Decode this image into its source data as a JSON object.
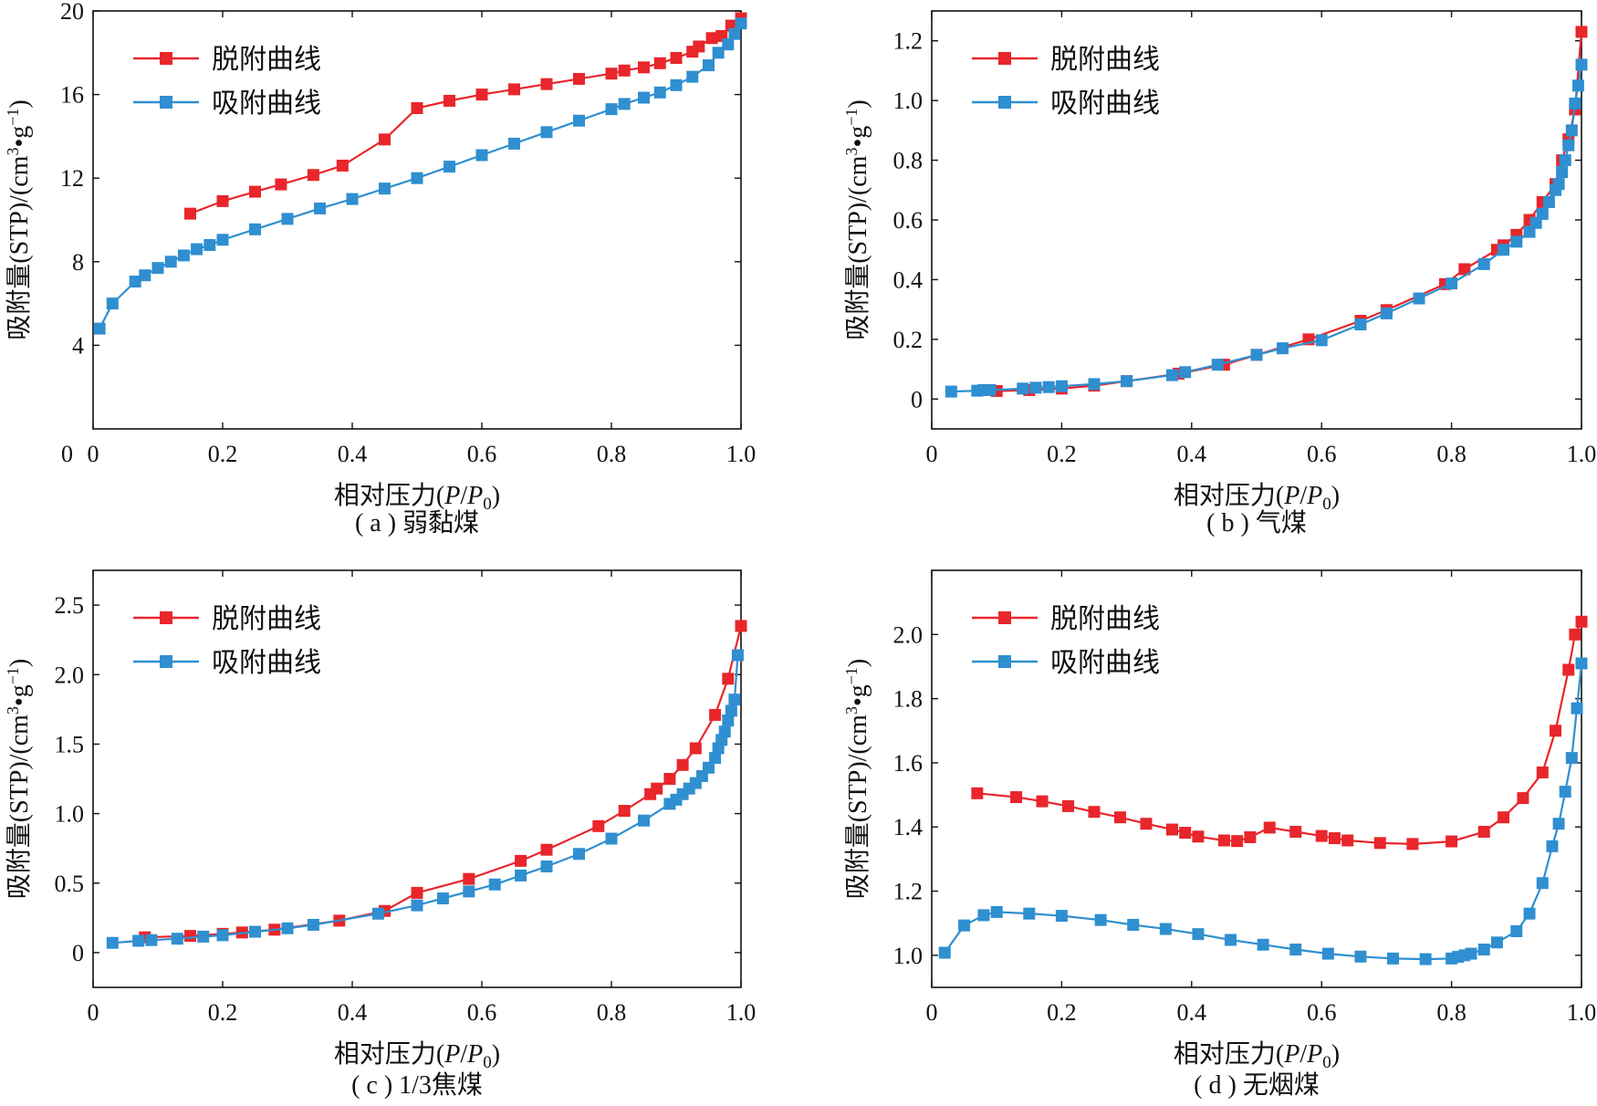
{
  "colors": {
    "desorption": "#e8262b",
    "adsorption": "#2f8fd0",
    "axis": "#111111"
  },
  "chart_data": [
    {
      "type": "line",
      "caption": "( a ) 弱黏煤",
      "xlabel_prefix": "相对压力(",
      "xlabel_var1": "P",
      "xlabel_sep": "/",
      "xlabel_var2": "P",
      "xlabel_sub": "0",
      "xlabel_suffix": ")",
      "ylabel_main": "吸附量(STP)/(cm",
      "ylabel_sup1": "3",
      "ylabel_mid": "•g",
      "ylabel_sup2": "−1",
      "ylabel_end": ")",
      "xlim": [
        0,
        1.0
      ],
      "ylim": [
        0,
        20
      ],
      "xticks": [
        0,
        0.2,
        0.4,
        0.6,
        0.8,
        1.0
      ],
      "xtick_labels": [
        "0",
        "0.2",
        "0.4",
        "0.6",
        "0.8",
        "1.0"
      ],
      "yticks": [
        4,
        8,
        12,
        16,
        20
      ],
      "ytick_labels": [
        "4",
        "8",
        "12",
        "16",
        "20"
      ],
      "origin_label": "0",
      "legend_position": "top-left",
      "series": [
        {
          "name": "脱附曲线",
          "color": "#e8262b",
          "x": [
            0.15,
            0.2,
            0.25,
            0.29,
            0.34,
            0.385,
            0.45,
            0.5,
            0.55,
            0.6,
            0.65,
            0.7,
            0.75,
            0.8,
            0.82,
            0.85,
            0.875,
            0.9,
            0.925,
            0.935,
            0.955,
            0.97,
            0.985,
            1.0
          ],
          "y": [
            10.3,
            10.9,
            11.35,
            11.7,
            12.15,
            12.6,
            13.85,
            15.35,
            15.7,
            16.0,
            16.25,
            16.5,
            16.75,
            17.0,
            17.15,
            17.3,
            17.5,
            17.75,
            18.05,
            18.3,
            18.7,
            18.8,
            19.3,
            19.65
          ]
        },
        {
          "name": "吸附曲线",
          "color": "#2f8fd0",
          "x": [
            0.01,
            0.03,
            0.065,
            0.08,
            0.1,
            0.12,
            0.14,
            0.16,
            0.18,
            0.2,
            0.25,
            0.3,
            0.35,
            0.4,
            0.45,
            0.5,
            0.55,
            0.6,
            0.65,
            0.7,
            0.75,
            0.8,
            0.82,
            0.85,
            0.875,
            0.9,
            0.925,
            0.95,
            0.965,
            0.98,
            0.99,
            1.0
          ],
          "y": [
            4.8,
            6.0,
            7.05,
            7.35,
            7.7,
            8.0,
            8.3,
            8.6,
            8.8,
            9.05,
            9.55,
            10.05,
            10.55,
            11.0,
            11.5,
            12.0,
            12.55,
            13.1,
            13.65,
            14.2,
            14.75,
            15.3,
            15.55,
            15.85,
            16.1,
            16.45,
            16.85,
            17.4,
            18.0,
            18.4,
            18.9,
            19.4
          ]
        }
      ]
    },
    {
      "type": "line",
      "caption": "( b ) 气煤",
      "xlabel_prefix": "相对压力(",
      "xlabel_var1": "P",
      "xlabel_sep": "/",
      "xlabel_var2": "P",
      "xlabel_sub": "0",
      "xlabel_suffix": ")",
      "ylabel_main": "吸附量(STP)/(cm",
      "ylabel_sup1": "3",
      "ylabel_mid": "•g",
      "ylabel_sup2": "−1",
      "ylabel_end": ")",
      "xlim": [
        0,
        1.0
      ],
      "ylim": [
        -0.1,
        1.3
      ],
      "xticks": [
        0,
        0.2,
        0.4,
        0.6,
        0.8,
        1.0
      ],
      "xtick_labels": [
        "0",
        "0.2",
        "0.4",
        "0.6",
        "0.8",
        "1.0"
      ],
      "yticks": [
        0,
        0.2,
        0.4,
        0.6,
        0.8,
        1.0,
        1.2
      ],
      "ytick_labels": [
        "0",
        "0.2",
        "0.4",
        "0.6",
        "0.8",
        "1.0",
        "1.2"
      ],
      "origin_label": "",
      "legend_position": "top-left",
      "series": [
        {
          "name": "脱附曲线",
          "color": "#e8262b",
          "x": [
            0.1,
            0.15,
            0.2,
            0.25,
            0.3,
            0.38,
            0.45,
            0.5,
            0.58,
            0.66,
            0.7,
            0.79,
            0.82,
            0.87,
            0.88,
            0.9,
            0.92,
            0.94,
            0.96,
            0.97,
            0.98,
            0.99,
            1.0
          ],
          "y": [
            0.027,
            0.03,
            0.035,
            0.045,
            0.06,
            0.085,
            0.115,
            0.148,
            0.2,
            0.262,
            0.298,
            0.385,
            0.435,
            0.5,
            0.515,
            0.55,
            0.6,
            0.66,
            0.72,
            0.8,
            0.87,
            0.97,
            1.23
          ]
        },
        {
          "name": "吸附曲线",
          "color": "#2f8fd0",
          "x": [
            0.03,
            0.07,
            0.08,
            0.09,
            0.14,
            0.16,
            0.18,
            0.2,
            0.25,
            0.3,
            0.37,
            0.39,
            0.44,
            0.5,
            0.54,
            0.6,
            0.66,
            0.7,
            0.75,
            0.8,
            0.85,
            0.88,
            0.9,
            0.92,
            0.93,
            0.94,
            0.95,
            0.96,
            0.965,
            0.97,
            0.975,
            0.98,
            0.985,
            0.99,
            0.995,
            1.0
          ],
          "y": [
            0.025,
            0.028,
            0.03,
            0.03,
            0.035,
            0.038,
            0.04,
            0.043,
            0.05,
            0.06,
            0.08,
            0.09,
            0.115,
            0.148,
            0.17,
            0.197,
            0.25,
            0.287,
            0.337,
            0.387,
            0.452,
            0.5,
            0.527,
            0.56,
            0.59,
            0.62,
            0.66,
            0.7,
            0.72,
            0.76,
            0.8,
            0.85,
            0.9,
            0.99,
            1.05,
            1.12
          ]
        }
      ]
    },
    {
      "type": "line",
      "caption": "( c ) 1/3焦煤",
      "xlabel_prefix": "相对压力(",
      "xlabel_var1": "P",
      "xlabel_sep": "/",
      "xlabel_var2": "P",
      "xlabel_sub": "0",
      "xlabel_suffix": ")",
      "ylabel_main": "吸附量(STP)/(cm",
      "ylabel_sup1": "3",
      "ylabel_mid": "•g",
      "ylabel_sup2": "−1",
      "ylabel_end": ")",
      "xlim": [
        0,
        1.0
      ],
      "ylim": [
        -0.25,
        2.75
      ],
      "xticks": [
        0,
        0.2,
        0.4,
        0.6,
        0.8,
        1.0
      ],
      "xtick_labels": [
        "0",
        "0.2",
        "0.4",
        "0.6",
        "0.8",
        "1.0"
      ],
      "yticks": [
        0,
        0.5,
        1.0,
        1.5,
        2.0,
        2.5
      ],
      "ytick_labels": [
        "0",
        "0.5",
        "1.0",
        "1.5",
        "2.0",
        "2.5"
      ],
      "origin_label": "",
      "legend_position": "top-left",
      "series": [
        {
          "name": "脱附曲线",
          "color": "#e8262b",
          "x": [
            0.08,
            0.15,
            0.2,
            0.23,
            0.28,
            0.38,
            0.45,
            0.5,
            0.58,
            0.66,
            0.7,
            0.78,
            0.82,
            0.86,
            0.87,
            0.89,
            0.91,
            0.93,
            0.96,
            0.98,
            1.0
          ],
          "y": [
            0.11,
            0.12,
            0.135,
            0.145,
            0.165,
            0.23,
            0.3,
            0.43,
            0.53,
            0.66,
            0.74,
            0.91,
            1.02,
            1.14,
            1.18,
            1.25,
            1.35,
            1.47,
            1.71,
            1.97,
            2.35
          ]
        },
        {
          "name": "吸附曲线",
          "color": "#2f8fd0",
          "x": [
            0.03,
            0.07,
            0.09,
            0.13,
            0.17,
            0.2,
            0.25,
            0.3,
            0.34,
            0.44,
            0.5,
            0.54,
            0.58,
            0.62,
            0.66,
            0.7,
            0.75,
            0.8,
            0.85,
            0.89,
            0.9,
            0.91,
            0.92,
            0.93,
            0.94,
            0.95,
            0.96,
            0.965,
            0.97,
            0.975,
            0.98,
            0.985,
            0.99,
            0.995
          ],
          "y": [
            0.07,
            0.085,
            0.09,
            0.1,
            0.115,
            0.125,
            0.15,
            0.175,
            0.2,
            0.28,
            0.34,
            0.39,
            0.44,
            0.49,
            0.555,
            0.62,
            0.71,
            0.82,
            0.95,
            1.07,
            1.1,
            1.14,
            1.18,
            1.22,
            1.27,
            1.33,
            1.4,
            1.47,
            1.53,
            1.59,
            1.67,
            1.74,
            1.82,
            2.14
          ]
        }
      ]
    },
    {
      "type": "line",
      "caption": "( d ) 无烟煤",
      "xlabel_prefix": "相对压力(",
      "xlabel_var1": "P",
      "xlabel_sep": "/",
      "xlabel_var2": "P",
      "xlabel_sub": "0",
      "xlabel_suffix": ")",
      "ylabel_main": "吸附量(STP)/(cm",
      "ylabel_sup1": "3",
      "ylabel_mid": "•g",
      "ylabel_sup2": "−1",
      "ylabel_end": ")",
      "xlim": [
        0,
        1.0
      ],
      "ylim": [
        0.9,
        2.2
      ],
      "xticks": [
        0,
        0.2,
        0.4,
        0.6,
        0.8,
        1.0
      ],
      "xtick_labels": [
        "0",
        "0.2",
        "0.4",
        "0.6",
        "0.8",
        "1.0"
      ],
      "yticks": [
        1.0,
        1.2,
        1.4,
        1.6,
        1.8,
        2.0
      ],
      "ytick_labels": [
        "1.0",
        "1.2",
        "1.4",
        "1.6",
        "1.8",
        "2.0"
      ],
      "origin_label": "",
      "legend_position": "top-left",
      "series": [
        {
          "name": "脱附曲线",
          "color": "#e8262b",
          "x": [
            0.07,
            0.13,
            0.17,
            0.21,
            0.25,
            0.29,
            0.33,
            0.37,
            0.39,
            0.41,
            0.45,
            0.47,
            0.49,
            0.52,
            0.56,
            0.6,
            0.62,
            0.64,
            0.69,
            0.74,
            0.8,
            0.85,
            0.88,
            0.91,
            0.94,
            0.96,
            0.98,
            0.99,
            1.0
          ],
          "y": [
            1.505,
            1.493,
            1.48,
            1.465,
            1.447,
            1.43,
            1.41,
            1.392,
            1.382,
            1.37,
            1.358,
            1.356,
            1.368,
            1.398,
            1.385,
            1.372,
            1.365,
            1.358,
            1.35,
            1.347,
            1.355,
            1.385,
            1.43,
            1.49,
            1.57,
            1.7,
            1.89,
            2.0,
            2.04
          ]
        },
        {
          "name": "吸附曲线",
          "color": "#2f8fd0",
          "x": [
            0.02,
            0.05,
            0.08,
            0.1,
            0.15,
            0.2,
            0.26,
            0.31,
            0.36,
            0.41,
            0.46,
            0.51,
            0.56,
            0.61,
            0.66,
            0.71,
            0.76,
            0.8,
            0.81,
            0.82,
            0.83,
            0.85,
            0.87,
            0.9,
            0.92,
            0.94,
            0.955,
            0.965,
            0.975,
            0.985,
            0.993,
            1.0
          ],
          "y": [
            1.008,
            1.093,
            1.125,
            1.135,
            1.13,
            1.123,
            1.11,
            1.095,
            1.082,
            1.066,
            1.048,
            1.033,
            1.018,
            1.005,
            0.996,
            0.99,
            0.988,
            0.99,
            0.995,
            1.0,
            1.005,
            1.018,
            1.04,
            1.075,
            1.13,
            1.225,
            1.34,
            1.41,
            1.51,
            1.615,
            1.77,
            1.91
          ]
        }
      ]
    }
  ]
}
